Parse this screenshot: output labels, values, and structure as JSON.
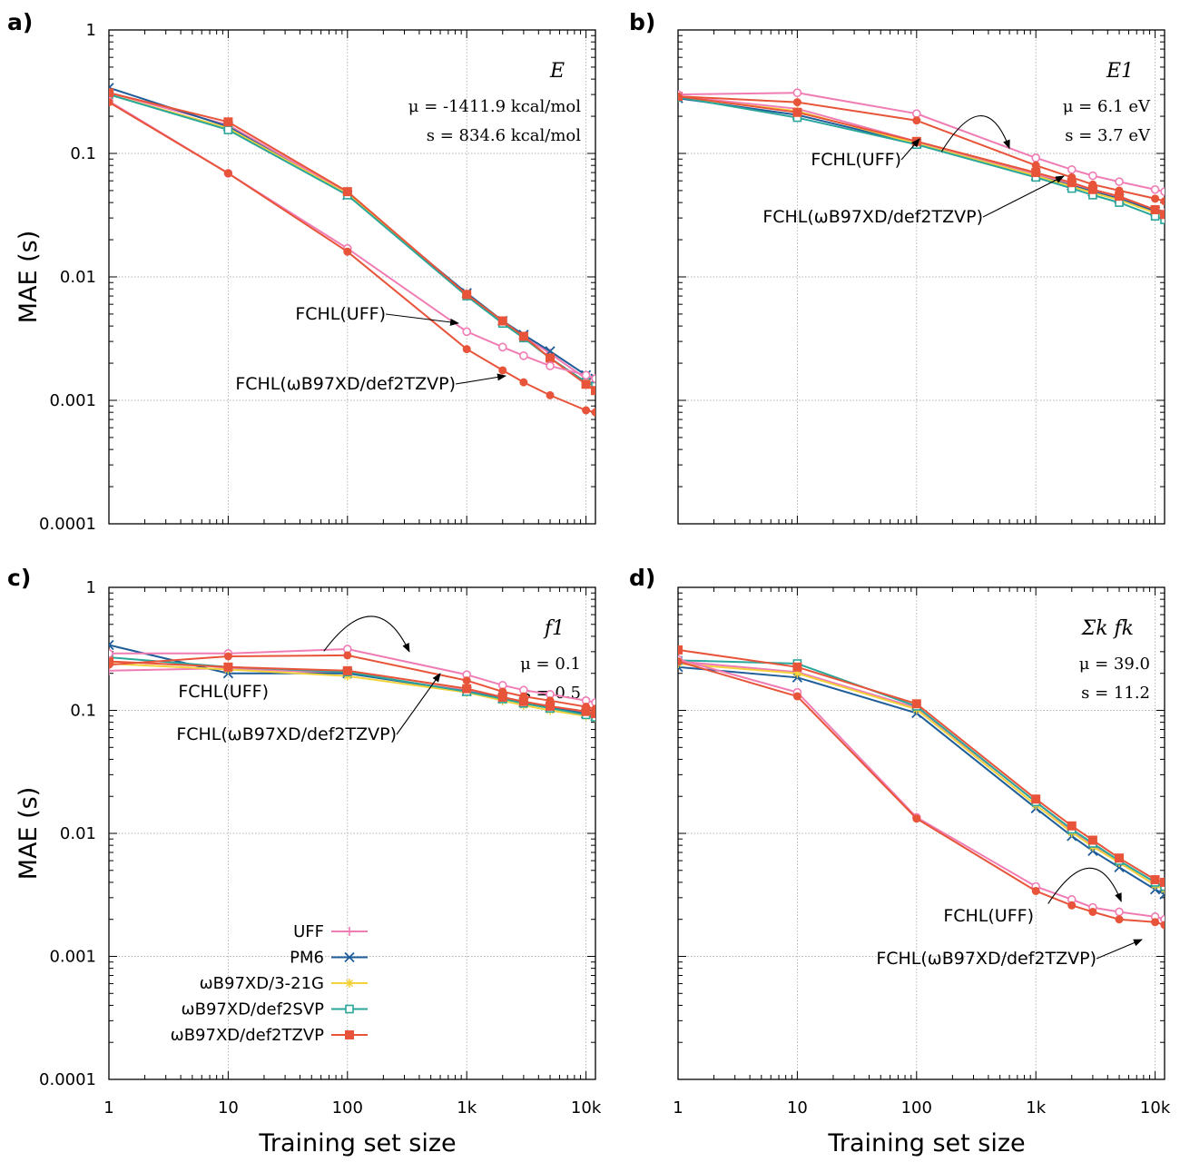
{
  "colors": {
    "UFF": "#f07cb4",
    "PM6": "#1f5d99",
    "wB97XD/3-21G": "#f2d13a",
    "wB97XD/def2SVP": "#2aa69a",
    "wB97XD/def2TZVP": "#e8543a"
  },
  "shared": {
    "xlabel": "Training set size",
    "ylabel": "MAE (s)",
    "x_ticks": [
      1,
      10,
      100,
      1000,
      10000
    ],
    "x_tick_labels": [
      "1",
      "10",
      "100",
      "1k",
      "10k"
    ],
    "y_ticks": [
      0.0001,
      0.001,
      0.01,
      0.1,
      1
    ],
    "y_tick_labels": [
      "0.0001",
      "0.001",
      "0.01",
      "0.1",
      "1"
    ],
    "xlim": [
      1,
      12000
    ],
    "ylim": [
      0.0001,
      1
    ]
  },
  "legend": {
    "placement": "bottom-left of panel c",
    "entries": [
      "UFF",
      "PM6",
      "ωB97XD/3-21G",
      "ωB97XD/def2SVP",
      "ωB97XD/def2TZVP"
    ]
  },
  "chart_data": [
    {
      "panel": "a)",
      "type": "line",
      "scale": "log-log",
      "quantity": "E",
      "mu": "μ = -1411.9 kcal/mol",
      "s": "s = 834.6 kcal/mol",
      "xlabel": "",
      "ylabel": "MAE (s)",
      "grid": true,
      "series": [
        {
          "name": "UFF",
          "x": [
            1,
            10,
            100,
            1000,
            2000,
            3000,
            5000,
            10000,
            12000
          ],
          "y": [
            0.31,
            0.17,
            0.048,
            0.0073,
            0.0043,
            0.0033,
            0.0024,
            0.0015,
            0.0015
          ]
        },
        {
          "name": "PM6",
          "x": [
            1,
            10,
            100,
            1000,
            2000,
            3000,
            5000,
            10000,
            12000
          ],
          "y": [
            0.34,
            0.165,
            0.046,
            0.0074,
            0.0044,
            0.0034,
            0.0025,
            0.0016,
            0.0015
          ]
        },
        {
          "name": "ωB97XD/3-21G",
          "x": [
            1,
            10,
            100,
            1000,
            2000,
            3000,
            5000,
            10000,
            12000
          ],
          "y": [
            0.3,
            0.16,
            0.047,
            0.0071,
            0.0042,
            0.0032,
            0.0022,
            0.0014,
            0.0013
          ]
        },
        {
          "name": "ωB97XD/def2SVP",
          "x": [
            1,
            10,
            100,
            1000,
            2000,
            3000,
            5000,
            10000,
            12000
          ],
          "y": [
            0.3,
            0.155,
            0.046,
            0.007,
            0.0042,
            0.0032,
            0.0022,
            0.0014,
            0.0013
          ]
        },
        {
          "name": "ωB97XD/def2TZVP",
          "x": [
            1,
            10,
            100,
            1000,
            2000,
            3000,
            5000,
            10000,
            12000
          ],
          "y": [
            0.31,
            0.18,
            0.049,
            0.0072,
            0.0044,
            0.0033,
            0.0022,
            0.00135,
            0.0012
          ]
        },
        {
          "name": "FCHL(UFF)",
          "base": "UFF",
          "fchl": true,
          "x": [
            1,
            10,
            100,
            1000,
            2000,
            3000,
            5000,
            10000,
            12000
          ],
          "y": [
            0.265,
            0.069,
            0.017,
            0.0036,
            0.0027,
            0.0023,
            0.0019,
            0.0016,
            0.0015
          ]
        },
        {
          "name": "FCHL(ωB97XD/def2TZVP)",
          "base": "wB97XD/def2TZVP",
          "fchl": true,
          "x": [
            1,
            10,
            100,
            1000,
            2000,
            3000,
            5000,
            10000,
            12000
          ],
          "y": [
            0.26,
            0.069,
            0.016,
            0.0026,
            0.00175,
            0.0014,
            0.0011,
            0.00083,
            0.0008
          ]
        }
      ],
      "labels": [
        {
          "text": "FCHL(UFF)",
          "tx": 60,
          "ty": 0.0045,
          "ax": 800,
          "ay": 0.0035,
          "anchor": "end",
          "arrow_x0": 40000
        },
        {
          "text": "FCHL(ωB97XD/def2TZVP)",
          "tx": 0.9,
          "ty": 0.0014,
          "ax": 1700,
          "ay": 0.0017,
          "anchor": "start",
          "arrow_x0": 120
        }
      ],
      "curved_arrow": null
    },
    {
      "panel": "b)",
      "type": "line",
      "scale": "log-log",
      "quantity": "E1",
      "mu": "μ = 6.1 eV",
      "s": "s = 3.7 eV",
      "xlabel": "",
      "ylabel": "",
      "grid": true,
      "series": [
        {
          "name": "UFF",
          "x": [
            1,
            10,
            100,
            1000,
            2000,
            3000,
            5000,
            10000,
            12000
          ],
          "y": [
            0.29,
            0.23,
            0.125,
            0.068,
            0.056,
            0.05,
            0.044,
            0.035,
            0.033
          ]
        },
        {
          "name": "PM6",
          "x": [
            1,
            10,
            100,
            1000,
            2000,
            3000,
            5000,
            10000,
            12000
          ],
          "y": [
            0.28,
            0.205,
            0.12,
            0.066,
            0.055,
            0.049,
            0.043,
            0.034,
            0.032
          ]
        },
        {
          "name": "ωB97XD/3-21G",
          "x": [
            1,
            10,
            100,
            1000,
            2000,
            3000,
            5000,
            10000,
            12000
          ],
          "y": [
            0.285,
            0.22,
            0.12,
            0.066,
            0.054,
            0.048,
            0.042,
            0.033,
            0.031
          ]
        },
        {
          "name": "ωB97XD/def2SVP",
          "x": [
            1,
            10,
            100,
            1000,
            2000,
            3000,
            5000,
            10000,
            12000
          ],
          "y": [
            0.285,
            0.195,
            0.118,
            0.064,
            0.052,
            0.046,
            0.04,
            0.031,
            0.029
          ]
        },
        {
          "name": "ωB97XD/def2TZVP",
          "x": [
            1,
            10,
            100,
            1000,
            2000,
            3000,
            5000,
            10000,
            12000
          ],
          "y": [
            0.29,
            0.215,
            0.125,
            0.07,
            0.058,
            0.051,
            0.045,
            0.035,
            0.032
          ]
        },
        {
          "name": "FCHL(UFF)",
          "base": "UFF",
          "fchl": true,
          "x": [
            1,
            10,
            100,
            1000,
            2000,
            3000,
            5000,
            10000,
            12000
          ],
          "y": [
            0.3,
            0.31,
            0.21,
            0.092,
            0.074,
            0.066,
            0.059,
            0.051,
            0.049
          ]
        },
        {
          "name": "FCHL(ωB97XD/def2TZVP)",
          "base": "wB97XD/def2TZVP",
          "fchl": true,
          "x": [
            1,
            10,
            100,
            1000,
            2000,
            3000,
            5000,
            10000,
            12000
          ],
          "y": [
            0.29,
            0.26,
            0.185,
            0.08,
            0.064,
            0.056,
            0.05,
            0.043,
            0.041
          ]
        }
      ],
      "labels": [
        {
          "text": "FCHL(UFF)",
          "tx": 0,
          "ty": 0,
          "anchor": "none",
          "ax": 0,
          "ay": 0,
          "plain": true
        },
        {
          "text": "FCHL(ωB97XD/def2TZVP)",
          "tx": 0,
          "ty": 0,
          "ax": 0,
          "ay": 0,
          "anchor": "none",
          "plain": true
        }
      ],
      "curved_arrow": {
        "x0": 230,
        "y0": 0.15,
        "x1": 600,
        "y1": 0.11
      }
    },
    {
      "panel": "c)",
      "type": "line",
      "scale": "log-log",
      "quantity": "f1",
      "mu": "μ = 0.1",
      "s": "s = 0.5",
      "xlabel": "Training set size",
      "ylabel": "MAE (s)",
      "grid": true,
      "series": [
        {
          "name": "UFF",
          "x": [
            1,
            10,
            100,
            1000,
            2000,
            3000,
            5000,
            10000,
            12000
          ],
          "y": [
            0.21,
            0.22,
            0.2,
            0.145,
            0.128,
            0.118,
            0.108,
            0.097,
            0.094
          ]
        },
        {
          "name": "PM6",
          "x": [
            1,
            10,
            100,
            1000,
            2000,
            3000,
            5000,
            10000,
            12000
          ],
          "y": [
            0.34,
            0.2,
            0.2,
            0.143,
            0.125,
            0.116,
            0.105,
            0.094,
            0.09
          ]
        },
        {
          "name": "ωB97XD/3-21G",
          "x": [
            1,
            10,
            100,
            1000,
            2000,
            3000,
            5000,
            10000,
            12000
          ],
          "y": [
            0.24,
            0.215,
            0.19,
            0.14,
            0.12,
            0.11,
            0.1,
            0.09,
            0.087
          ]
        },
        {
          "name": "ωB97XD/def2SVP",
          "x": [
            1,
            10,
            100,
            1000,
            2000,
            3000,
            5000,
            10000,
            12000
          ],
          "y": [
            0.27,
            0.225,
            0.205,
            0.142,
            0.124,
            0.114,
            0.104,
            0.092,
            0.088
          ]
        },
        {
          "name": "ωB97XD/def2TZVP",
          "x": [
            1,
            10,
            100,
            1000,
            2000,
            3000,
            5000,
            10000,
            12000
          ],
          "y": [
            0.25,
            0.225,
            0.21,
            0.15,
            0.128,
            0.118,
            0.108,
            0.098,
            0.094
          ]
        },
        {
          "name": "FCHL(UFF)",
          "base": "UFF",
          "fchl": true,
          "x": [
            1,
            10,
            100,
            1000,
            2000,
            3000,
            5000,
            10000,
            12000
          ],
          "y": [
            0.29,
            0.29,
            0.315,
            0.195,
            0.16,
            0.146,
            0.135,
            0.12,
            0.116
          ]
        },
        {
          "name": "FCHL(ωB97XD/def2TZVP)",
          "base": "wB97XD/def2TZVP",
          "fchl": true,
          "x": [
            1,
            10,
            100,
            1000,
            2000,
            3000,
            5000,
            10000,
            12000
          ],
          "y": [
            0.235,
            0.275,
            0.28,
            0.175,
            0.142,
            0.13,
            0.12,
            0.107,
            0.103
          ]
        }
      ],
      "labels": [
        {
          "text": "FCHL(UFF)",
          "tx": 0,
          "ty": 0,
          "ax": 0,
          "ay": 0,
          "anchor": "none",
          "plain": true
        },
        {
          "text": "FCHL(ωB97XD/def2TZVP)",
          "tx": 0,
          "ty": 0,
          "ax": 0,
          "ay": 0,
          "anchor": "none",
          "plain": true
        }
      ],
      "curved_arrow": {
        "x0": 90,
        "y0": 0.44,
        "x1": 330,
        "y1": 0.3
      }
    },
    {
      "panel": "d)",
      "type": "line",
      "scale": "log-log",
      "quantity": "Σk fk",
      "mu": "μ = 39.0",
      "s": "s = 11.2",
      "xlabel": "Training set size",
      "ylabel": "",
      "grid": true,
      "series": [
        {
          "name": "UFF",
          "x": [
            1,
            10,
            100,
            1000,
            2000,
            3000,
            5000,
            10000,
            12000
          ],
          "y": [
            0.25,
            0.205,
            0.105,
            0.018,
            0.0105,
            0.008,
            0.0058,
            0.0038,
            0.0036
          ]
        },
        {
          "name": "PM6",
          "x": [
            1,
            10,
            100,
            1000,
            2000,
            3000,
            5000,
            10000,
            12000
          ],
          "y": [
            0.225,
            0.185,
            0.095,
            0.016,
            0.0095,
            0.0072,
            0.0053,
            0.0035,
            0.0032
          ]
        },
        {
          "name": "ωB97XD/3-21G",
          "x": [
            1,
            10,
            100,
            1000,
            2000,
            3000,
            5000,
            10000,
            12000
          ],
          "y": [
            0.24,
            0.2,
            0.102,
            0.017,
            0.0102,
            0.0078,
            0.0058,
            0.0038,
            0.0035
          ]
        },
        {
          "name": "ωB97XD/def2SVP",
          "x": [
            1,
            10,
            100,
            1000,
            2000,
            3000,
            5000,
            10000,
            12000
          ],
          "y": [
            0.255,
            0.24,
            0.108,
            0.018,
            0.0108,
            0.0083,
            0.006,
            0.004,
            0.0037
          ]
        },
        {
          "name": "ωB97XD/def2TZVP",
          "x": [
            1,
            10,
            100,
            1000,
            2000,
            3000,
            5000,
            10000,
            12000
          ],
          "y": [
            0.31,
            0.225,
            0.113,
            0.019,
            0.0115,
            0.0088,
            0.0063,
            0.0042,
            0.004
          ]
        },
        {
          "name": "FCHL(UFF)",
          "base": "UFF",
          "fchl": true,
          "x": [
            1,
            10,
            100,
            1000,
            2000,
            3000,
            5000,
            10000,
            12000
          ],
          "y": [
            0.26,
            0.14,
            0.0135,
            0.0037,
            0.0029,
            0.0025,
            0.0023,
            0.0021,
            0.002
          ]
        },
        {
          "name": "FCHL(ωB97XD/def2TZVP)",
          "base": "wB97XD/def2TZVP",
          "fchl": true,
          "x": [
            1,
            10,
            100,
            1000,
            2000,
            3000,
            5000,
            10000,
            12000
          ],
          "y": [
            0.25,
            0.13,
            0.0132,
            0.0034,
            0.0026,
            0.0023,
            0.002,
            0.0019,
            0.0018
          ]
        }
      ],
      "labels": [
        {
          "text": "FCHL(UFF)",
          "tx": 0,
          "ty": 0,
          "ax": 0,
          "ay": 0,
          "anchor": "none",
          "plain": true
        },
        {
          "text": "FCHL(ωB97XD/def2TZVP)",
          "tx": 0,
          "ty": 0,
          "ax": 0,
          "ay": 0,
          "anchor": "none",
          "plain": true
        }
      ],
      "curved_arrow": {
        "x0": 1800,
        "y0": 0.0039,
        "x1": 5200,
        "y1": 0.0028
      }
    }
  ]
}
